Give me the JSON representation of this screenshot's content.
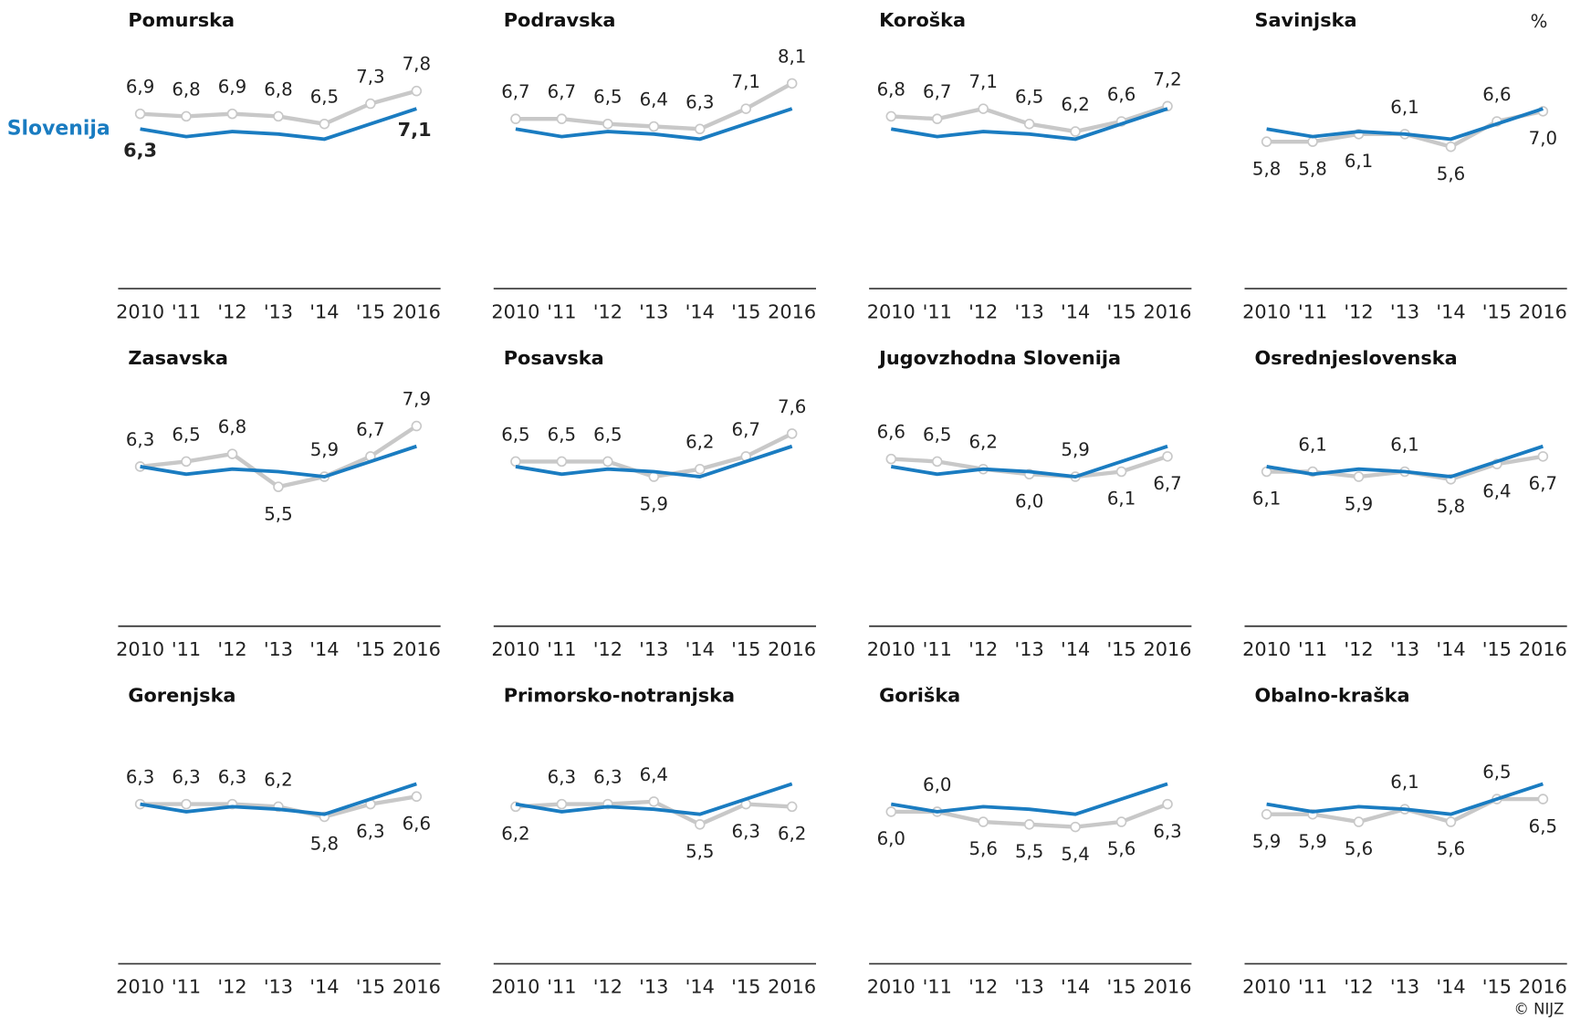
{
  "chart_data": {
    "type": "line",
    "unit": "%",
    "credit": "© NIJZ",
    "categories": [
      "2010",
      "'11",
      "'12",
      "'13",
      "'14",
      "'15",
      "2016"
    ],
    "ylim": [
      0,
      8.5
    ],
    "reference": {
      "name": "Slovenija",
      "color": "#1a7cc1",
      "values": [
        6.3,
        6.0,
        6.2,
        6.1,
        5.9,
        6.5,
        7.1
      ],
      "value_labels": [
        "6,3",
        null,
        null,
        null,
        null,
        null,
        "7,1"
      ]
    },
    "region_color": "#c8c8c8",
    "panels": [
      {
        "title": "Pomurska",
        "values": [
          6.9,
          6.8,
          6.9,
          6.8,
          6.5,
          7.3,
          7.8
        ],
        "value_labels": [
          "6,9",
          "6,8",
          "6,9",
          "6,8",
          "6,5",
          "7,3",
          "7,8"
        ]
      },
      {
        "title": "Podravska",
        "values": [
          6.7,
          6.7,
          6.5,
          6.4,
          6.3,
          7.1,
          8.1
        ],
        "value_labels": [
          "6,7",
          "6,7",
          "6,5",
          "6,4",
          "6,3",
          "7,1",
          "8,1"
        ]
      },
      {
        "title": "Koroška",
        "values": [
          6.8,
          6.7,
          7.1,
          6.5,
          6.2,
          6.6,
          7.2
        ],
        "value_labels": [
          "6,8",
          "6,7",
          "7,1",
          "6,5",
          "6,2",
          "6,6",
          "7,2"
        ]
      },
      {
        "title": "Savinjska",
        "values": [
          5.8,
          5.8,
          6.1,
          6.1,
          5.6,
          6.6,
          7.0
        ],
        "value_labels": [
          "5,8",
          "5,8",
          "6,1",
          "6,1",
          "5,6",
          "6,6",
          "7,0"
        ]
      },
      {
        "title": "Zasavska",
        "values": [
          6.3,
          6.5,
          6.8,
          5.5,
          5.9,
          6.7,
          7.9
        ],
        "value_labels": [
          "6,3",
          "6,5",
          "6,8",
          "5,5",
          "5,9",
          "6,7",
          "7,9"
        ]
      },
      {
        "title": "Posavska",
        "values": [
          6.5,
          6.5,
          6.5,
          5.9,
          6.2,
          6.7,
          7.6
        ],
        "value_labels": [
          "6,5",
          "6,5",
          "6,5",
          "5,9",
          "6,2",
          "6,7",
          "7,6"
        ]
      },
      {
        "title": "Jugovzhodna  Slovenija",
        "values": [
          6.6,
          6.5,
          6.2,
          6.0,
          5.9,
          6.1,
          6.7
        ],
        "value_labels": [
          "6,6",
          "6,5",
          "6,2",
          "6,0",
          "5,9",
          "6,1",
          "6,7"
        ]
      },
      {
        "title": "Osrednjeslovenska",
        "values": [
          6.1,
          6.1,
          5.9,
          6.1,
          5.8,
          6.4,
          6.7
        ],
        "value_labels": [
          "6,1",
          "6,1",
          "5,9",
          "6,1",
          "5,8",
          "6,4",
          "6,7"
        ]
      },
      {
        "title": "Gorenjska",
        "values": [
          6.3,
          6.3,
          6.3,
          6.2,
          5.8,
          6.3,
          6.6
        ],
        "value_labels": [
          "6,3",
          "6,3",
          "6,3",
          "6,2",
          "5,8",
          "6,3",
          "6,6"
        ]
      },
      {
        "title": "Primorsko-notranjska",
        "values": [
          6.2,
          6.3,
          6.3,
          6.4,
          5.5,
          6.3,
          6.2
        ],
        "value_labels": [
          "6,2",
          "6,3",
          "6,3",
          "6,4",
          "5,5",
          "6,3",
          "6,2"
        ]
      },
      {
        "title": "Goriška",
        "values": [
          6.0,
          6.0,
          5.6,
          5.5,
          5.4,
          5.6,
          6.3
        ],
        "value_labels": [
          "6,0",
          "6,0",
          "5,6",
          "5,5",
          "5,4",
          "5,6",
          "6,3"
        ]
      },
      {
        "title": "Obalno-kraška",
        "values": [
          5.9,
          5.9,
          5.6,
          6.1,
          5.6,
          6.5,
          6.5
        ],
        "value_labels": [
          "5,9",
          "5,9",
          "5,6",
          "6,1",
          "5,6",
          "6,5",
          "6,5"
        ]
      }
    ]
  }
}
